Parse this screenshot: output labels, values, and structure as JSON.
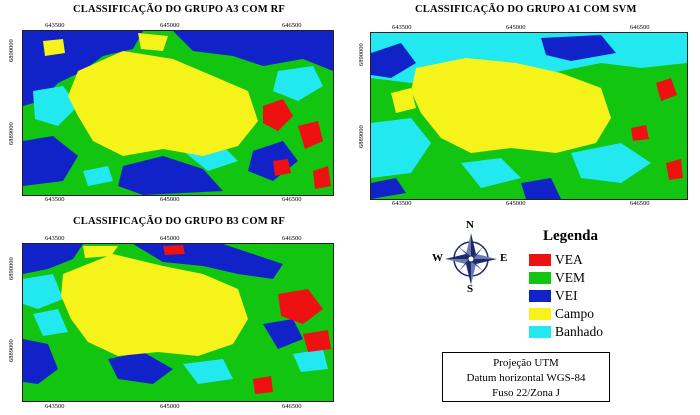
{
  "panels": [
    {
      "title": "CLASSIFICAÇÃO DO GRUPO A3 COM RF",
      "top_ticks": [
        "643500",
        "645000",
        "646500"
      ],
      "bottom_ticks": [
        "643500",
        "645000",
        "646500"
      ],
      "left_ticks": [
        "6890000",
        "6889000"
      ]
    },
    {
      "title": "CLASSIFICAÇÃO DO GRUPO A1 COM SVM",
      "top_ticks": [
        "643500",
        "645000",
        "646500"
      ],
      "bottom_ticks": [
        "643500",
        "645000",
        "646500"
      ],
      "left_ticks": [
        "6890000",
        "6889000"
      ]
    },
    {
      "title": "CLASSIFICAÇÃO DO GRUPO B3 COM RF",
      "top_ticks": [
        "643500",
        "645000",
        "646500"
      ],
      "bottom_ticks": [
        "643500",
        "645000",
        "646500"
      ],
      "left_ticks": [
        "6890000",
        "6889000"
      ]
    }
  ],
  "legend": {
    "title": "Legenda",
    "items": [
      {
        "label": "VEA",
        "color": "#ee1111"
      },
      {
        "label": "VEM",
        "color": "#11c511"
      },
      {
        "label": "VEI",
        "color": "#1022c8"
      },
      {
        "label": "Campo",
        "color": "#f6f31a"
      },
      {
        "label": "Banhado",
        "color": "#22e8ef"
      }
    ]
  },
  "compass": {
    "n": "N",
    "s": "S",
    "e": "E",
    "w": "W",
    "icon": "compass-rose-icon"
  },
  "projection": {
    "line1": "Projeção UTM",
    "line2": "Datum horizontal WGS-84",
    "line3": "Fuso 22/Zona J"
  }
}
